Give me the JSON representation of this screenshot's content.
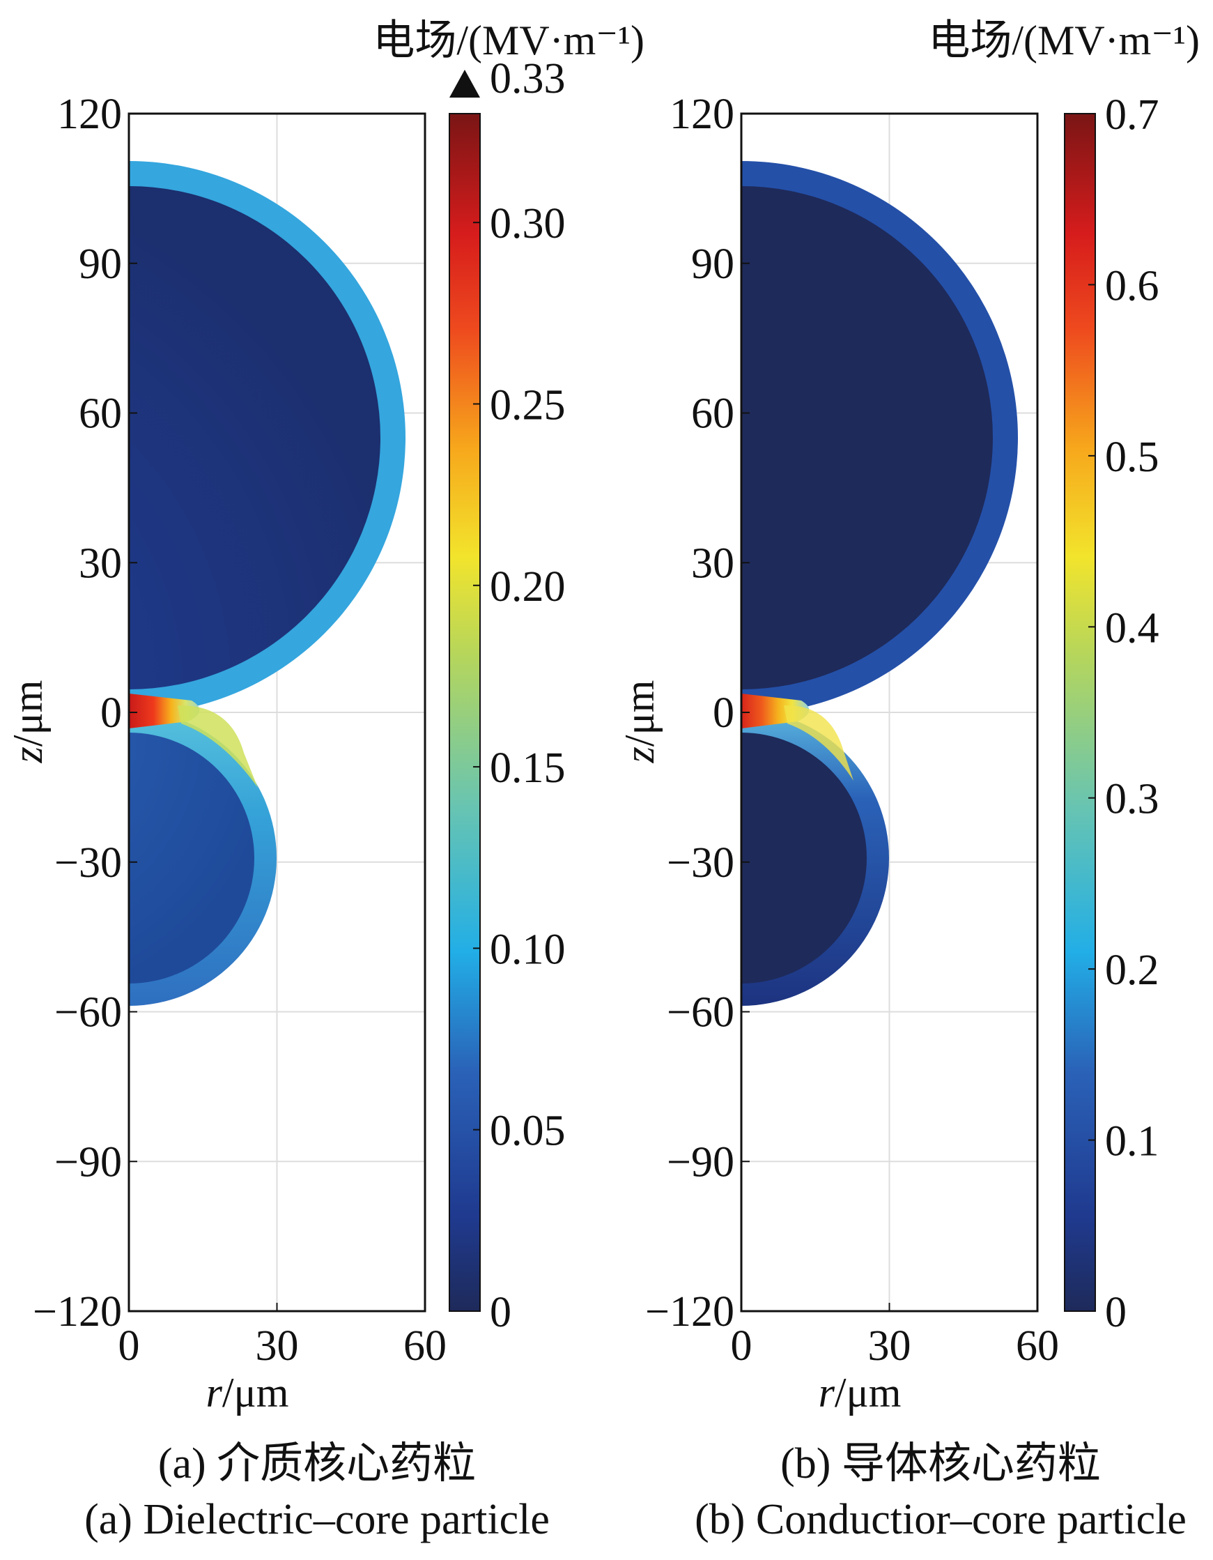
{
  "chart_data": [
    {
      "type": "heatmap",
      "panel": "a",
      "caption_cn": "(a) 介质核心药粒",
      "caption_en": "(a) Dielectric–core particle",
      "xlabel_var": "r",
      "xlabel_unit": "/μm",
      "ylabel_var": "z",
      "ylabel_unit": "/μm",
      "xlim": [
        0,
        60
      ],
      "ylim": [
        -120,
        120
      ],
      "xticks": [
        "0",
        "30",
        "60"
      ],
      "yticks": [
        "120",
        "90",
        "60",
        "30",
        "0",
        "−30",
        "−60",
        "−90",
        "−120"
      ],
      "colorbar": {
        "title": "电场/(MV·m⁻¹)",
        "range": [
          0,
          0.33
        ],
        "ticks": [
          "0.33",
          "0.30",
          "0.25",
          "0.20",
          "0.15",
          "0.10",
          "0.05",
          "0"
        ],
        "tick_values": [
          0.33,
          0.3,
          0.25,
          0.2,
          0.15,
          0.1,
          0.05,
          0
        ],
        "overflow_marker": true
      },
      "particles": [
        {
          "center_z": 54,
          "outer_radius": 56,
          "core_radius": 51,
          "core_field": 0.02,
          "shell_field": 0.1
        },
        {
          "center_z": -29,
          "outer_radius": 30,
          "core_radius": 25,
          "core_field": 0.05,
          "shell_field": 0.08
        }
      ],
      "contact_gap_peak_field": 0.33
    },
    {
      "type": "heatmap",
      "panel": "b",
      "caption_cn": "(b) 导体核心药粒",
      "caption_en": "(b) Conductior–core particle",
      "xlabel_var": "r",
      "xlabel_unit": "/μm",
      "ylabel_var": "z",
      "ylabel_unit": "/μm",
      "xlim": [
        0,
        60
      ],
      "ylim": [
        -120,
        120
      ],
      "xticks": [
        "0",
        "30",
        "60"
      ],
      "yticks": [
        "120",
        "90",
        "60",
        "30",
        "0",
        "−30",
        "−60",
        "−90",
        "−120"
      ],
      "colorbar": {
        "title": "电场/(MV·m⁻¹)",
        "range": [
          0,
          0.7
        ],
        "ticks": [
          "0.7",
          "0.6",
          "0.5",
          "0.4",
          "0.3",
          "0.2",
          "0.1",
          "0"
        ],
        "tick_values": [
          0.7,
          0.6,
          0.5,
          0.4,
          0.3,
          0.2,
          0.1,
          0
        ],
        "overflow_marker": false
      },
      "particles": [
        {
          "center_z": 54,
          "outer_radius": 56,
          "core_radius": 51,
          "core_field": 0.0,
          "shell_field": 0.12
        },
        {
          "center_z": -29,
          "outer_radius": 30,
          "core_radius": 25,
          "core_field": 0.0,
          "shell_field": 0.1
        }
      ],
      "contact_gap_peak_field": 0.65
    }
  ]
}
